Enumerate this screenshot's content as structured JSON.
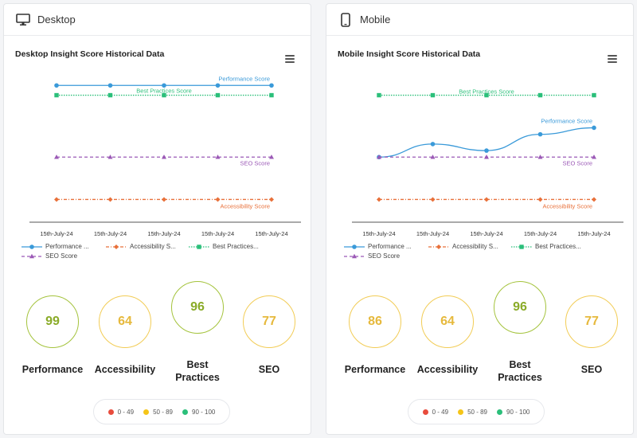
{
  "colors": {
    "performance": "#3a9ad9",
    "accessibility": "#e8703a",
    "best_practices": "#2bbf7a",
    "seo": "#9b59b6",
    "good": "#2bbf7a",
    "average": "#f5c518",
    "poor": "#e84c3d"
  },
  "legend_labels": {
    "performance": "Performance ...",
    "accessibility": "Accessibility S...",
    "best_practices": "Best Practices...",
    "seo": "SEO Score"
  },
  "ranges": [
    {
      "label": "0 - 49",
      "color": "#e84c3d"
    },
    {
      "label": "50 - 89",
      "color": "#f5c518"
    },
    {
      "label": "90 - 100",
      "color": "#2bbf7a"
    }
  ],
  "panels": [
    {
      "id": "desktop",
      "header": "Desktop",
      "icon": "monitor-icon",
      "chart_title": "Desktop Insight Score Historical Data",
      "scores": [
        {
          "label": "Performance",
          "value": "99",
          "grade": "green"
        },
        {
          "label": "Accessibility",
          "value": "64",
          "grade": "yellow"
        },
        {
          "label": "Best Practices",
          "value": "96",
          "grade": "green"
        },
        {
          "label": "SEO",
          "value": "77",
          "grade": "yellow"
        }
      ]
    },
    {
      "id": "mobile",
      "header": "Mobile",
      "icon": "smartphone-icon",
      "chart_title": "Mobile Insight Score Historical Data",
      "scores": [
        {
          "label": "Performance",
          "value": "86",
          "grade": "yellow"
        },
        {
          "label": "Accessibility",
          "value": "64",
          "grade": "yellow"
        },
        {
          "label": "Best Practices",
          "value": "96",
          "grade": "green"
        },
        {
          "label": "SEO",
          "value": "77",
          "grade": "yellow"
        }
      ]
    }
  ],
  "chart_data": [
    {
      "type": "line",
      "title": "Desktop Insight Score Historical Data",
      "x": [
        "15th-July-24",
        "15th-July-24",
        "15th-July-24",
        "15th-July-24",
        "15th-July-24"
      ],
      "ylim": [
        0,
        100
      ],
      "grid": false,
      "legend": "bottom",
      "series": [
        {
          "name": "Performance Score",
          "key": "performance",
          "values": [
            99,
            99,
            99,
            99,
            99
          ]
        },
        {
          "name": "Accessibility Score",
          "key": "accessibility",
          "values": [
            64,
            64,
            64,
            64,
            64
          ]
        },
        {
          "name": "Best Practices Score",
          "key": "best_practices",
          "values": [
            96,
            96,
            96,
            96,
            96
          ]
        },
        {
          "name": "SEO Score",
          "key": "seo",
          "values": [
            77,
            77,
            77,
            77,
            77
          ]
        }
      ]
    },
    {
      "type": "line",
      "title": "Mobile Insight Score Historical Data",
      "x": [
        "15th-July-24",
        "15th-July-24",
        "15th-July-24",
        "15th-July-24",
        "15th-July-24"
      ],
      "ylim": [
        0,
        100
      ],
      "grid": false,
      "legend": "bottom",
      "series": [
        {
          "name": "Performance Score",
          "key": "performance",
          "values": [
            77,
            81,
            79,
            84,
            86
          ]
        },
        {
          "name": "Accessibility Score",
          "key": "accessibility",
          "values": [
            64,
            64,
            64,
            64,
            64
          ]
        },
        {
          "name": "Best Practices Score",
          "key": "best_practices",
          "values": [
            96,
            96,
            96,
            96,
            96
          ]
        },
        {
          "name": "SEO Score",
          "key": "seo",
          "values": [
            77,
            77,
            77,
            77,
            77
          ]
        }
      ]
    }
  ]
}
